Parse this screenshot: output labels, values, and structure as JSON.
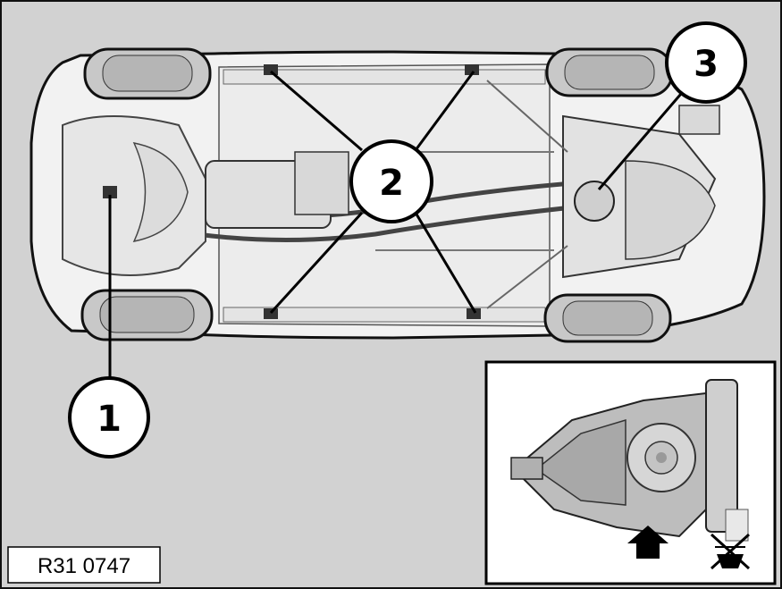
{
  "diagram": {
    "reference_code": "R31 0747",
    "callouts": [
      {
        "label": "1"
      },
      {
        "label": "2"
      },
      {
        "label": "3"
      }
    ],
    "inset": {
      "arrow_icon": "up-arrow-icon",
      "crossed_icon": "crossed-out-lift-point-icon"
    },
    "colors": {
      "background": "#d2d2d2",
      "vehicle_body": "#f2f2f2",
      "outline": "#111111",
      "tire": "#c8c8c8",
      "lift_pad": "#333333"
    }
  }
}
